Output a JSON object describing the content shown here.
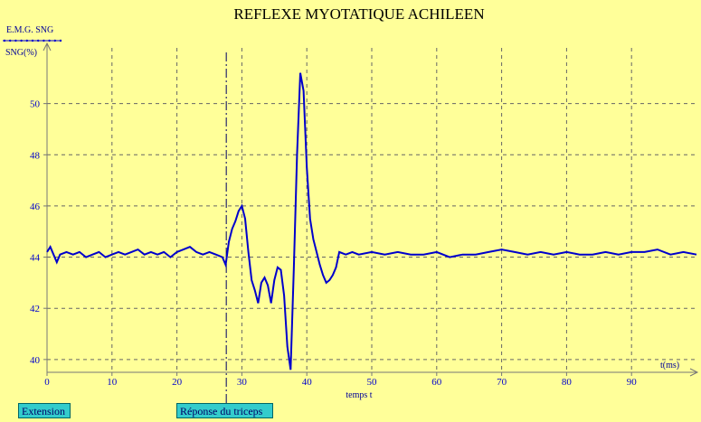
{
  "chart_data": {
    "type": "line",
    "title": "REFLEXE MYOTATIQUE ACHILEEN",
    "legend_label": "E.M.G. SNG",
    "ylabel": "SNG(%)",
    "xlabel": "temps t",
    "x_axis_name": "t(ms)",
    "xlim": [
      0,
      100
    ],
    "ylim": [
      39.5,
      52.0
    ],
    "x_ticks": [
      0,
      10,
      20,
      30,
      40,
      50,
      60,
      70,
      80,
      90
    ],
    "y_ticks": [
      40,
      42,
      44,
      46,
      48,
      50
    ],
    "grid": true,
    "marker_x": 27.6,
    "series": [
      {
        "name": "",
        "color": "#0000CC",
        "x": [
          0,
          0.5,
          1,
          1.5,
          2,
          3,
          4,
          5,
          6,
          7,
          8,
          9,
          10,
          11,
          12,
          13,
          14,
          15,
          16,
          17,
          18,
          19,
          20,
          21,
          22,
          23,
          24,
          25,
          26,
          27,
          27.5,
          28,
          28.5,
          29,
          29.5,
          30,
          30.5,
          31,
          31.5,
          32,
          32.5,
          33,
          33.5,
          34,
          34.5,
          35,
          35.5,
          36,
          36.5,
          37,
          37.5,
          38,
          38.5,
          39,
          39.5,
          40,
          40.5,
          41,
          41.5,
          42,
          42.5,
          43,
          43.5,
          44,
          44.5,
          45,
          46,
          47,
          48,
          50,
          52,
          54,
          56,
          58,
          60,
          62,
          64,
          66,
          68,
          70,
          72,
          74,
          76,
          78,
          80,
          82,
          84,
          86,
          88,
          90,
          92,
          94,
          96,
          98,
          100
        ],
        "y": [
          44.2,
          44.4,
          44.1,
          43.8,
          44.1,
          44.2,
          44.1,
          44.2,
          44.0,
          44.1,
          44.2,
          44.0,
          44.1,
          44.2,
          44.1,
          44.2,
          44.3,
          44.1,
          44.2,
          44.1,
          44.2,
          44.0,
          44.2,
          44.3,
          44.4,
          44.2,
          44.1,
          44.2,
          44.1,
          44.0,
          43.7,
          44.6,
          45.1,
          45.4,
          45.8,
          46.0,
          45.5,
          44.2,
          43.1,
          42.7,
          42.2,
          43.0,
          43.2,
          42.9,
          42.2,
          43.1,
          43.6,
          43.5,
          42.5,
          40.5,
          39.6,
          43.5,
          48.0,
          51.2,
          50.5,
          47.5,
          45.5,
          44.7,
          44.2,
          43.7,
          43.3,
          43.0,
          43.1,
          43.3,
          43.6,
          44.2,
          44.1,
          44.2,
          44.1,
          44.2,
          44.1,
          44.2,
          44.1,
          44.1,
          44.2,
          44.0,
          44.1,
          44.1,
          44.2,
          44.3,
          44.2,
          44.1,
          44.2,
          44.1,
          44.2,
          44.1,
          44.1,
          44.2,
          44.1,
          44.2,
          44.2,
          44.3,
          44.1,
          44.2,
          44.1
        ]
      }
    ]
  },
  "buttons": {
    "extension": "Extension",
    "reponse": "Réponse du triceps"
  }
}
